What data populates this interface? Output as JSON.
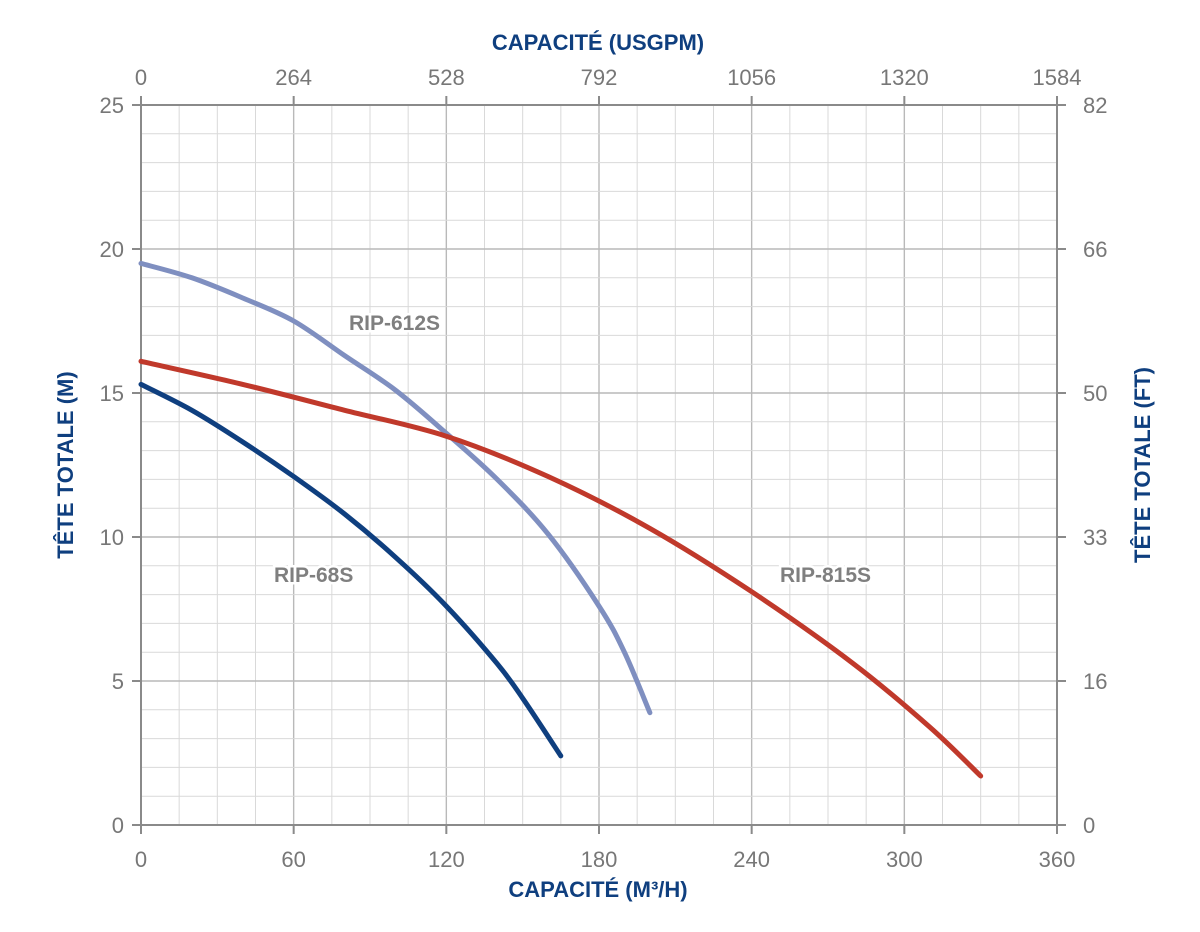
{
  "chart_data": {
    "type": "line",
    "x_axis_bottom": {
      "label": "CAPACITÉ (M³/H)",
      "min": 0,
      "max": 360,
      "ticks": [
        "0",
        "60",
        "120",
        "180",
        "240",
        "300",
        "360"
      ]
    },
    "x_axis_top": {
      "label": "CAPACITÉ (USGPM)",
      "ticks": [
        "0",
        "264",
        "528",
        "792",
        "1056",
        "1320",
        "1584"
      ]
    },
    "y_axis_left": {
      "label": "TÊTE TOTALE (M)",
      "min": 0,
      "max": 25,
      "ticks": [
        "0",
        "5",
        "10",
        "15",
        "20",
        "25"
      ]
    },
    "y_axis_right": {
      "label": "TÊTE TOTALE (FT)",
      "ticks": [
        "0",
        "16",
        "33",
        "50",
        "66",
        "82"
      ]
    },
    "grid": true,
    "series": [
      {
        "name": "RIP-68S",
        "color": "#0f3f7f",
        "x": [
          0,
          20,
          40,
          60,
          80,
          100,
          120,
          140,
          150,
          165
        ],
        "y": [
          15.3,
          14.4,
          13.3,
          12.1,
          10.8,
          9.3,
          7.6,
          5.6,
          4.4,
          2.4
        ]
      },
      {
        "name": "RIP-612S",
        "color": "#7f8fc0",
        "x": [
          0,
          20,
          40,
          60,
          80,
          100,
          120,
          140,
          160,
          180,
          190,
          200
        ],
        "y": [
          19.5,
          19.0,
          18.3,
          17.5,
          16.3,
          15.1,
          13.6,
          12.0,
          10.1,
          7.6,
          6.0,
          3.9
        ]
      },
      {
        "name": "RIP-815S",
        "color": "#c0392b",
        "x": [
          0,
          40,
          80,
          120,
          160,
          200,
          240,
          280,
          310,
          330
        ],
        "y": [
          16.1,
          15.3,
          14.4,
          13.5,
          12.1,
          10.3,
          8.1,
          5.6,
          3.4,
          1.7
        ]
      }
    ]
  }
}
